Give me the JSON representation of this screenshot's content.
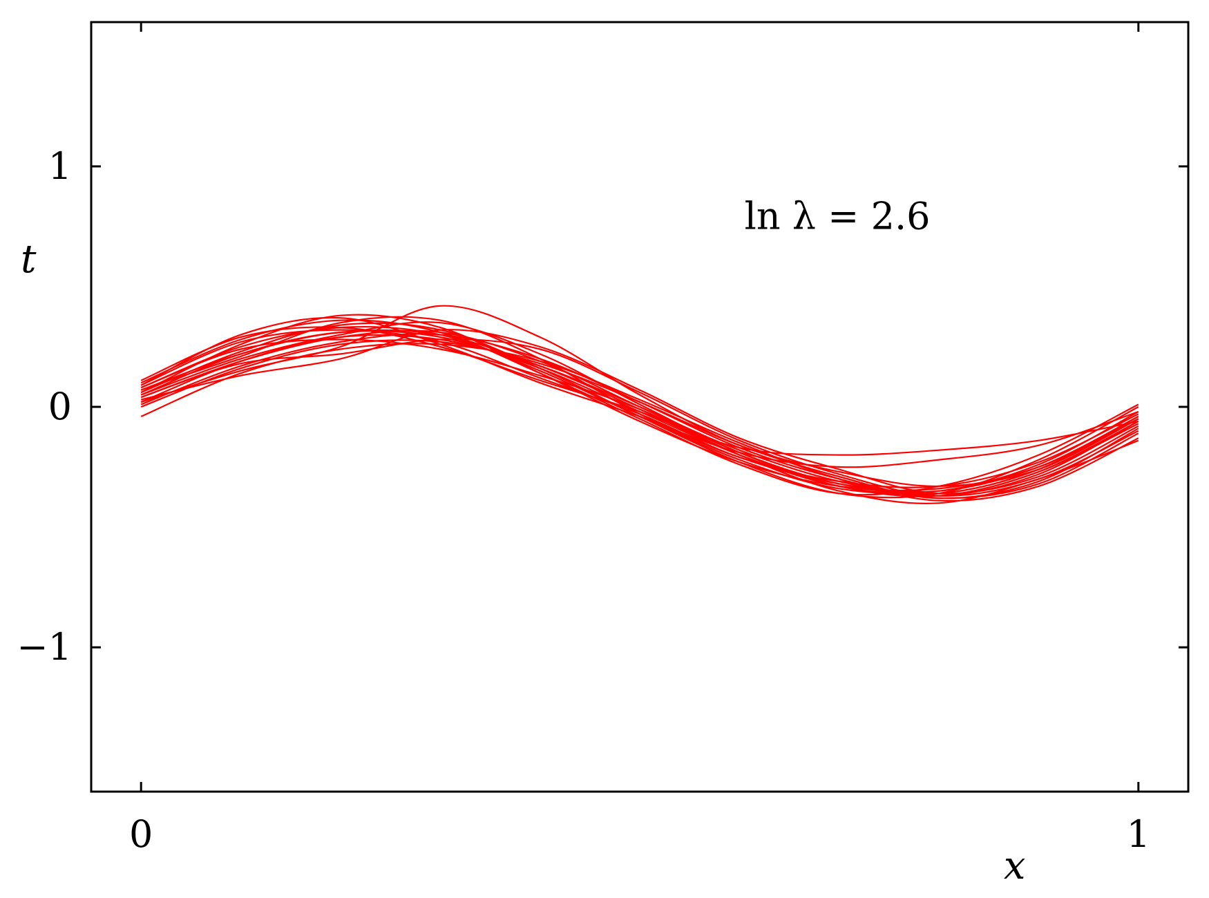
{
  "chart_data": {
    "type": "line",
    "title": "",
    "xlabel": "x",
    "ylabel": "t",
    "xlim": [
      -0.05,
      1.05
    ],
    "ylim": [
      -1.6,
      1.6
    ],
    "x_ticks": [
      {
        "value": 0,
        "label": "0"
      },
      {
        "value": 1,
        "label": "1"
      }
    ],
    "y_ticks": [
      {
        "value": -1,
        "label": "−1"
      },
      {
        "value": 0,
        "label": "0"
      },
      {
        "value": 1,
        "label": "1"
      }
    ],
    "grid": false,
    "legend": "none",
    "annotation": "ln λ = 2.6",
    "line_color": "#ff0000",
    "x": [
      0,
      0.1,
      0.2,
      0.3,
      0.4,
      0.5,
      0.6,
      0.7,
      0.8,
      0.9,
      1.0
    ],
    "series": [
      {
        "values": [
          0.05,
          0.22,
          0.31,
          0.29,
          0.16,
          -0.02,
          -0.2,
          -0.33,
          -0.36,
          -0.26,
          -0.04
        ]
      },
      {
        "values": [
          0.08,
          0.25,
          0.33,
          0.3,
          0.15,
          -0.04,
          -0.22,
          -0.34,
          -0.35,
          -0.24,
          -0.02
        ]
      },
      {
        "values": [
          0.02,
          0.19,
          0.29,
          0.28,
          0.17,
          0.0,
          -0.18,
          -0.31,
          -0.37,
          -0.28,
          -0.06
        ]
      },
      {
        "values": [
          0.1,
          0.28,
          0.36,
          0.31,
          0.14,
          -0.05,
          -0.24,
          -0.36,
          -0.33,
          -0.2,
          0.01
        ]
      },
      {
        "values": [
          0.0,
          0.16,
          0.26,
          0.27,
          0.18,
          0.02,
          -0.16,
          -0.29,
          -0.38,
          -0.31,
          -0.09
        ]
      },
      {
        "values": [
          0.06,
          0.26,
          0.38,
          0.33,
          0.14,
          -0.06,
          -0.23,
          -0.33,
          -0.34,
          -0.25,
          -0.05
        ]
      },
      {
        "values": [
          -0.04,
          0.14,
          0.24,
          0.26,
          0.19,
          0.03,
          -0.15,
          -0.3,
          -0.39,
          -0.33,
          -0.13
        ]
      },
      {
        "values": [
          0.09,
          0.3,
          0.37,
          0.26,
          0.1,
          -0.04,
          -0.19,
          -0.25,
          -0.22,
          -0.16,
          -0.02
        ]
      },
      {
        "values": [
          0.04,
          0.18,
          0.22,
          0.28,
          0.24,
          0.06,
          -0.14,
          -0.28,
          -0.37,
          -0.3,
          -0.1
        ]
      },
      {
        "values": [
          0.07,
          0.21,
          0.35,
          0.36,
          0.2,
          -0.03,
          -0.21,
          -0.31,
          -0.33,
          -0.23,
          -0.03
        ]
      },
      {
        "values": [
          0.03,
          0.13,
          0.2,
          0.32,
          0.25,
          0.07,
          -0.13,
          -0.26,
          -0.36,
          -0.29,
          -0.08
        ]
      },
      {
        "values": [
          0.11,
          0.29,
          0.33,
          0.25,
          0.11,
          -0.02,
          -0.17,
          -0.2,
          -0.18,
          -0.14,
          -0.06
        ]
      },
      {
        "values": [
          0.05,
          0.2,
          0.3,
          0.35,
          0.22,
          0.01,
          -0.19,
          -0.33,
          -0.37,
          -0.27,
          -0.07
        ]
      },
      {
        "values": [
          0.01,
          0.17,
          0.27,
          0.3,
          0.2,
          0.02,
          -0.17,
          -0.3,
          -0.38,
          -0.32,
          -0.11
        ]
      },
      {
        "values": [
          0.08,
          0.24,
          0.28,
          0.24,
          0.13,
          -0.01,
          -0.2,
          -0.35,
          -0.4,
          -0.3,
          -0.14
        ]
      },
      {
        "values": [
          0.06,
          0.23,
          0.34,
          0.32,
          0.16,
          -0.04,
          -0.23,
          -0.36,
          -0.36,
          -0.22,
          0.0
        ]
      },
      {
        "values": [
          0.02,
          0.15,
          0.25,
          0.42,
          0.29,
          0.05,
          -0.16,
          -0.27,
          -0.33,
          -0.26,
          -0.05
        ]
      },
      {
        "values": [
          0.09,
          0.27,
          0.32,
          0.27,
          0.12,
          -0.03,
          -0.21,
          -0.32,
          -0.35,
          -0.25,
          -0.04
        ]
      },
      {
        "values": [
          0.04,
          0.19,
          0.29,
          0.31,
          0.19,
          0.0,
          -0.19,
          -0.32,
          -0.36,
          -0.26,
          -0.05
        ]
      },
      {
        "values": [
          0.07,
          0.22,
          0.31,
          0.3,
          0.17,
          -0.01,
          -0.2,
          -0.33,
          -0.37,
          -0.27,
          -0.06
        ]
      }
    ]
  }
}
